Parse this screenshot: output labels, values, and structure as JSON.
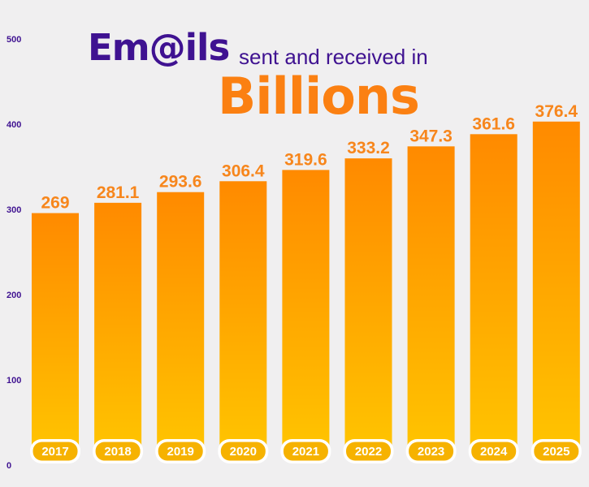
{
  "title": {
    "part1": "Em@ils",
    "part2": "sent and received in",
    "part3": "Billions"
  },
  "colors": {
    "title_purple": "#3f1291",
    "title_orange": "#fb8012",
    "value_orange": "#f7861c",
    "bar_top": "#ff8a00",
    "bar_bottom": "#ffc400",
    "background": "#f0eff0"
  },
  "chart_data": {
    "type": "bar",
    "categories": [
      "2017",
      "2018",
      "2019",
      "2020",
      "2021",
      "2022",
      "2023",
      "2024",
      "2025"
    ],
    "values": [
      269,
      281.1,
      293.6,
      306.4,
      319.6,
      333.2,
      347.3,
      361.6,
      376.4
    ],
    "value_labels": [
      "269",
      "281.1",
      "293.6",
      "306.4",
      "319.6",
      "333.2",
      "347.3",
      "361.6",
      "376.4"
    ],
    "yticks": [
      0,
      100,
      200,
      300,
      400,
      500
    ],
    "ylim": [
      0,
      500
    ],
    "title": "Em@ils sent and received in Billions",
    "xlabel": "",
    "ylabel": "",
    "grid": false,
    "legend": "none"
  }
}
